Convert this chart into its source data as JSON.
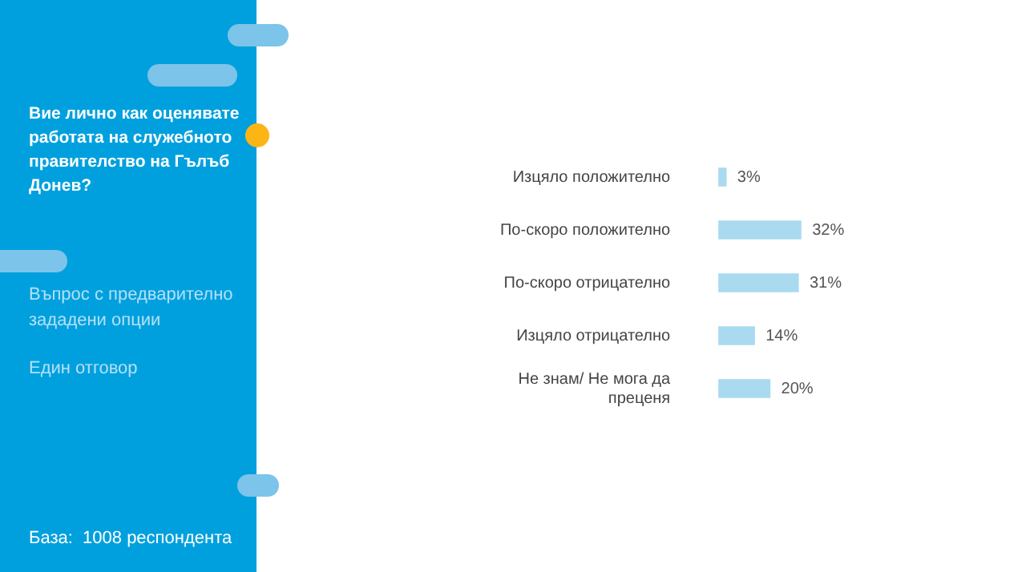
{
  "chart_data": {
    "type": "bar",
    "orientation": "horizontal",
    "title": "Вие лично как оценявате работата на служебното правителство на Гълъб Донев?",
    "annotations": [
      "Въпрос с предварително зададени опции",
      "Един отговор",
      "База:  1008 респондента"
    ],
    "categories": [
      "Изцяло положително",
      "По-скоро положително",
      "По-скоро отрицателно",
      "Изцяло отрицателно",
      "Не знам/ Не мога да преценя"
    ],
    "values": [
      3,
      32,
      31,
      14,
      20
    ],
    "value_labels": [
      "3%",
      "32%",
      "31%",
      "14%",
      "20%"
    ],
    "color": "#a9daf0",
    "tick_labels": "y"
  }
}
